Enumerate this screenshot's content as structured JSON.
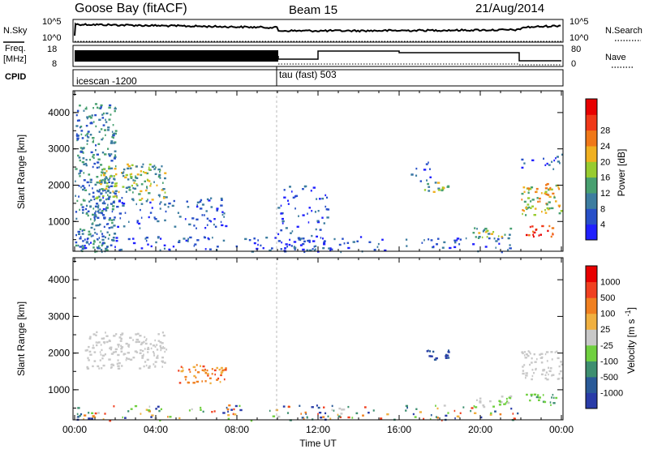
{
  "header": {
    "station": "Goose Bay (fitACF)",
    "beam": "Beam 15",
    "date": "21/Aug/2014"
  },
  "nsky_panel": {
    "left_label": "N.Sky",
    "left_ticks": [
      "10^5",
      "10^0"
    ],
    "right_label": "N.Search",
    "right_ticks": [
      "10^5",
      "10^0"
    ]
  },
  "freq_panel": {
    "left_label_line1": "Freq.",
    "left_label_line2": "[MHz]",
    "left_ticks": [
      "18",
      "8"
    ],
    "right_label": "Nave",
    "right_ticks": [
      "80",
      "0"
    ]
  },
  "cpid_panel": {
    "label": "CPID",
    "programs": [
      {
        "name": "icescan -1200",
        "start_hour": 0
      },
      {
        "name": "tau (fast) 503",
        "start_hour": 10
      }
    ]
  },
  "time_axis": {
    "label": "Time UT",
    "tick_labels": [
      "00:00",
      "04:00",
      "08:00",
      "12:00",
      "16:00",
      "20:00",
      "00:00"
    ]
  },
  "chart_data": [
    {
      "type": "heatmap",
      "title": "",
      "xlabel": "",
      "ylabel": "Slant Range [km]",
      "x_range_hours": [
        0,
        24
      ],
      "ylim": [
        180,
        4600
      ],
      "y_ticks": [
        1000,
        2000,
        3000,
        4000
      ],
      "colorbar": {
        "label": "Power [dB]",
        "tick_labels": [
          "4",
          "8",
          "12",
          "16",
          "20",
          "24",
          "28"
        ],
        "colors": [
          "#2020ff",
          "#2850c8",
          "#3d7da0",
          "#48a070",
          "#98cc30",
          "#f0b020",
          "#f07818",
          "#f03818",
          "#e80000"
        ]
      },
      "echo_regions": [
        {
          "hours": [
            0.0,
            2.0
          ],
          "range_km": [
            180,
            4300
          ],
          "level": "low-mid",
          "description": "scattered"
        },
        {
          "hours": [
            1.0,
            4.5
          ],
          "range_km": [
            1600,
            2600
          ],
          "level": "mid"
        },
        {
          "hours": [
            0.5,
            7.5
          ],
          "range_km": [
            800,
            1700
          ],
          "level": "low"
        },
        {
          "hours": [
            0.0,
            22.0
          ],
          "range_km": [
            180,
            600
          ],
          "level": "low"
        },
        {
          "hours": [
            10.0,
            12.5
          ],
          "range_km": [
            180,
            2000
          ],
          "level": "low"
        },
        {
          "hours": [
            16.5,
            17.5
          ],
          "range_km": [
            2100,
            2800
          ],
          "level": "low"
        },
        {
          "hours": [
            17.2,
            18.5
          ],
          "range_km": [
            1800,
            2100
          ],
          "level": "mid"
        },
        {
          "hours": [
            19.5,
            21.5
          ],
          "range_km": [
            550,
            850
          ],
          "level": "mid"
        },
        {
          "hours": [
            22.0,
            24.0
          ],
          "range_km": [
            1200,
            2100
          ],
          "level": "high"
        },
        {
          "hours": [
            22.2,
            23.8
          ],
          "range_km": [
            600,
            900
          ],
          "level": "very-high"
        },
        {
          "hours": [
            22.0,
            24.0
          ],
          "range_km": [
            2400,
            2900
          ],
          "level": "low"
        }
      ]
    },
    {
      "type": "heatmap",
      "title": "",
      "xlabel": "Time UT",
      "ylabel": "Slant Range [km]",
      "x_range_hours": [
        0,
        24
      ],
      "ylim": [
        180,
        4600
      ],
      "y_ticks": [
        1000,
        2000,
        3000,
        4000
      ],
      "colorbar": {
        "label": "Velocity [m s^-1]",
        "tick_labels": [
          "1000",
          "500",
          "100",
          "25",
          "-25",
          "-100",
          "-500",
          "-1000"
        ],
        "colors": [
          "#2a3ca8",
          "#2a5a98",
          "#3e8f70",
          "#70d040",
          "#c8c8c8",
          "#f0b040",
          "#f08020",
          "#f04020",
          "#e80000"
        ]
      },
      "echo_regions": [
        {
          "hours": [
            0.5,
            4.5
          ],
          "range_km": [
            1600,
            2600
          ],
          "level": "ground"
        },
        {
          "hours": [
            5.0,
            7.5
          ],
          "range_km": [
            1200,
            1700
          ],
          "level": "away-moderate"
        },
        {
          "hours": [
            0.0,
            22.0
          ],
          "range_km": [
            180,
            600
          ],
          "level": "mixed"
        },
        {
          "hours": [
            17.2,
            18.5
          ],
          "range_km": [
            1800,
            2100
          ],
          "level": "toward-strong"
        },
        {
          "hours": [
            19.5,
            21.5
          ],
          "range_km": [
            550,
            850
          ],
          "level": "toward-weak"
        },
        {
          "hours": [
            22.0,
            24.0
          ],
          "range_km": [
            1300,
            2100
          ],
          "level": "ground"
        },
        {
          "hours": [
            22.2,
            23.8
          ],
          "range_km": [
            600,
            900
          ],
          "level": "toward-moderate"
        }
      ]
    }
  ]
}
